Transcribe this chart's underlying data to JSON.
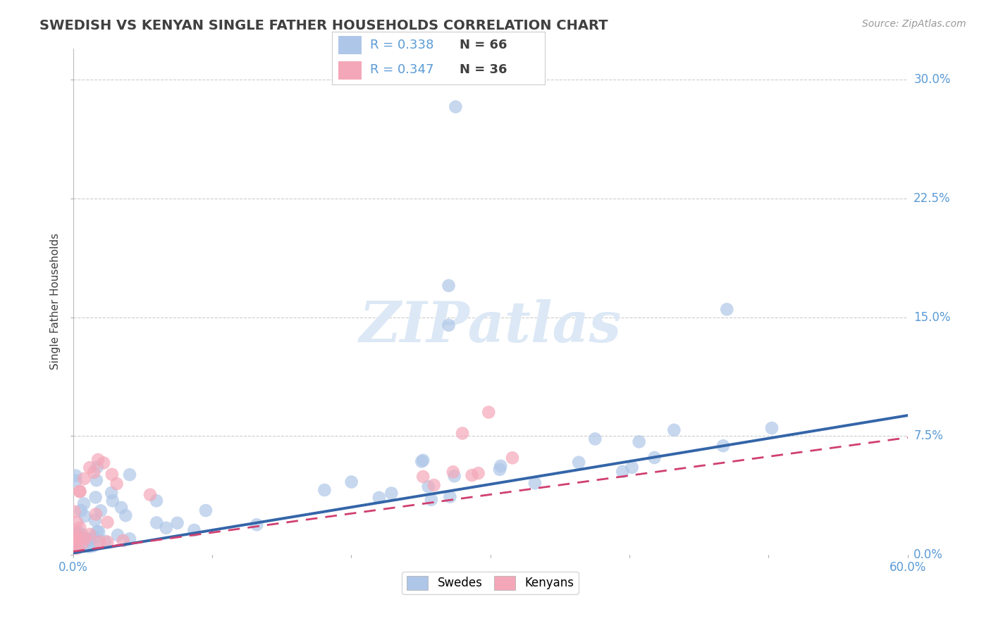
{
  "title": "SWEDISH VS KENYAN SINGLE FATHER HOUSEHOLDS CORRELATION CHART",
  "source": "Source: ZipAtlas.com",
  "ylabel": "Single Father Households",
  "yticks": [
    "0.0%",
    "7.5%",
    "15.0%",
    "22.5%",
    "30.0%"
  ],
  "ytick_vals": [
    0.0,
    0.075,
    0.15,
    0.225,
    0.3
  ],
  "xlim": [
    0.0,
    0.6
  ],
  "ylim": [
    0.0,
    0.32
  ],
  "swedes_R": 0.338,
  "swedes_N": 66,
  "kenyans_R": 0.347,
  "kenyans_N": 36,
  "swede_color": "#aec6e8",
  "kenyan_color": "#f4a7b9",
  "swede_line_color": "#3465a8",
  "kenyan_line_color": "#d04070",
  "title_color": "#404040",
  "label_color": "#5b9bd5",
  "watermark_color": "#dce8f5",
  "background_color": "#ffffff",
  "legend_R_color": "#5b9bd5",
  "legend_N_color": "#404040"
}
